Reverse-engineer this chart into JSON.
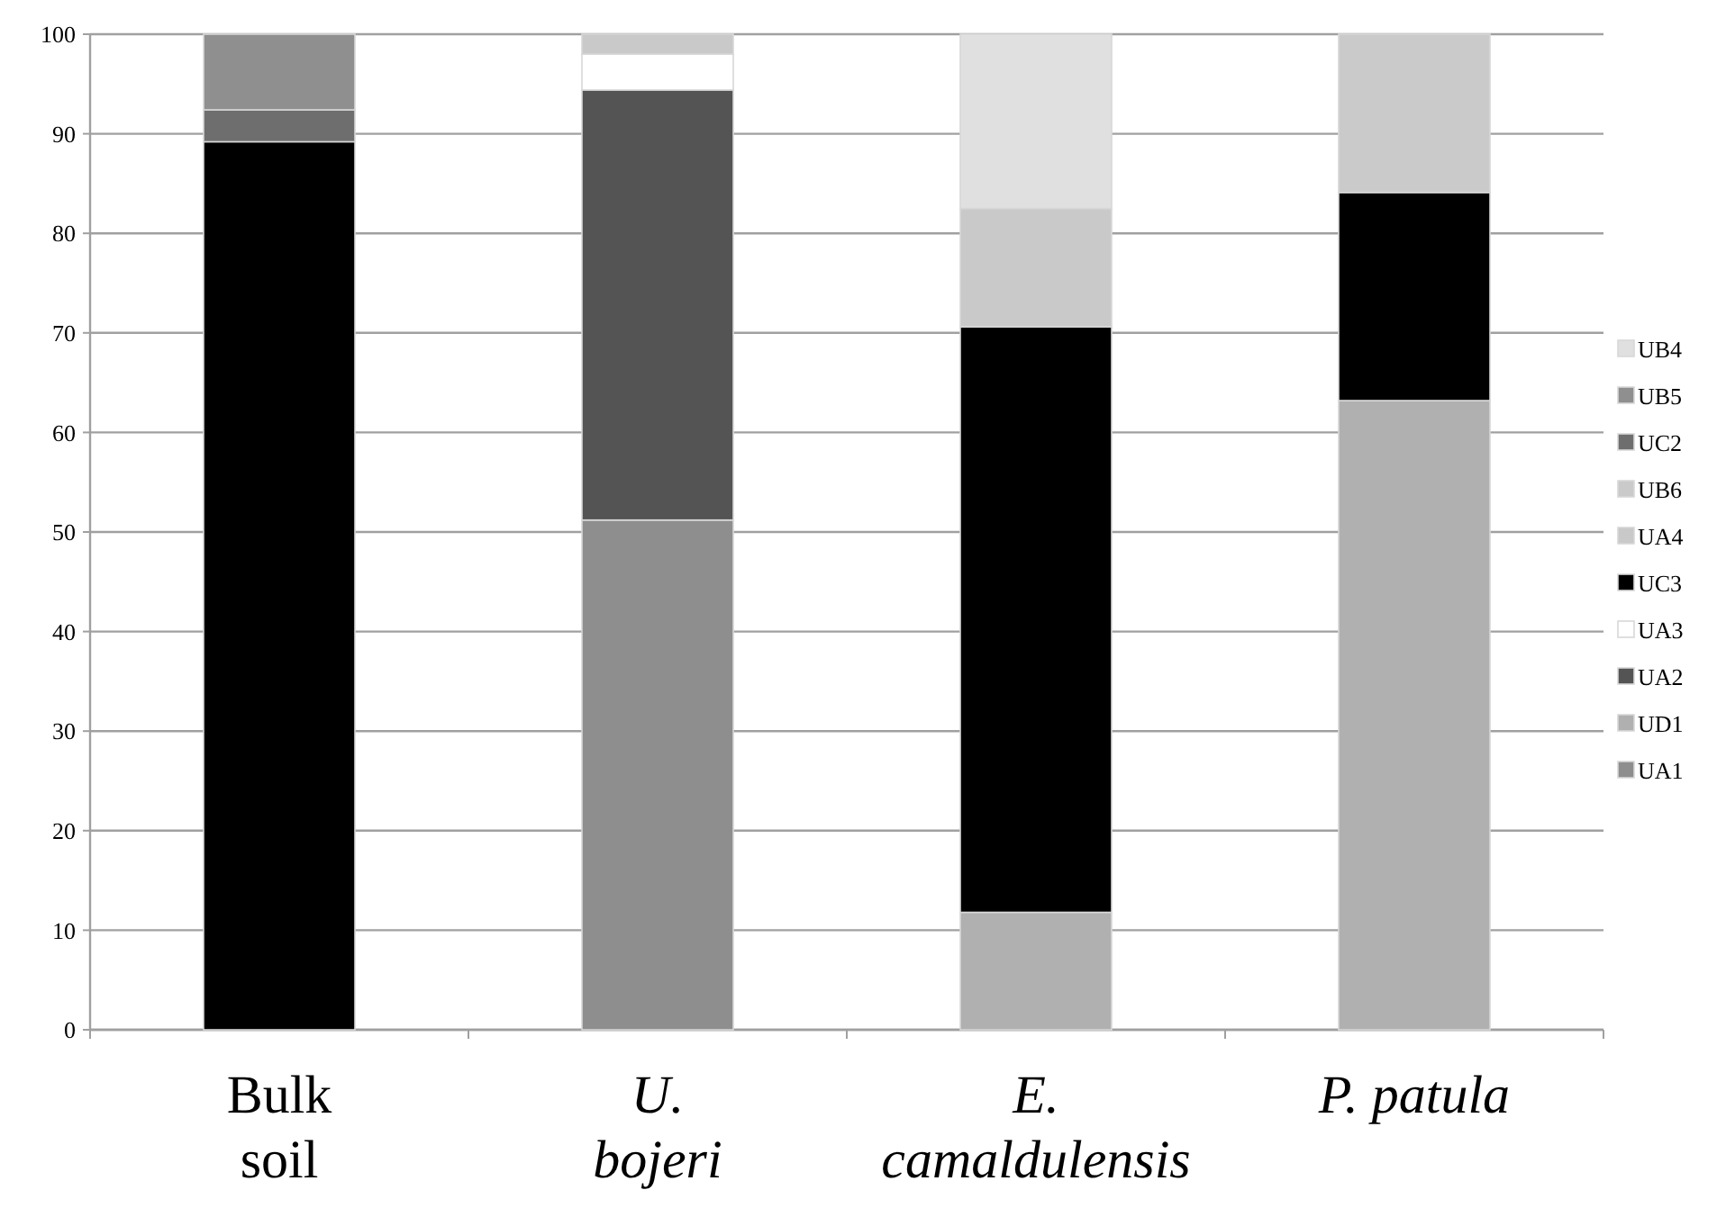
{
  "chart_data": {
    "type": "bar",
    "stacked": true,
    "categories": [
      "Bulk soil",
      "U. bojeri",
      "E. camaldulensis",
      "P. patula"
    ],
    "series": [
      {
        "name": "UA1",
        "color": "#8e8e8e",
        "values": [
          0,
          51.2,
          0,
          0
        ]
      },
      {
        "name": "UD1",
        "color": "#b0b0b0",
        "values": [
          0,
          0,
          11.8,
          63.2
        ]
      },
      {
        "name": "UA2",
        "color": "#545454",
        "values": [
          0,
          43.2,
          0,
          0
        ]
      },
      {
        "name": "UA3",
        "color": "#ffffff",
        "values": [
          0,
          3.6,
          0,
          0
        ]
      },
      {
        "name": "UC3",
        "color": "#000000",
        "values": [
          89.2,
          0,
          58.8,
          20.9
        ]
      },
      {
        "name": "UA4",
        "color": "#c9c9c9",
        "values": [
          0,
          2.0,
          11.9,
          0
        ]
      },
      {
        "name": "UB6",
        "color": "#cacaca",
        "values": [
          0,
          0,
          0,
          15.9
        ]
      },
      {
        "name": "UC2",
        "color": "#6e6e6e",
        "values": [
          3.2,
          0,
          0,
          0
        ]
      },
      {
        "name": "UB5",
        "color": "#8f8f8f",
        "values": [
          7.6,
          0,
          0,
          0
        ]
      },
      {
        "name": "UB4",
        "color": "#e0e0e0",
        "values": [
          0,
          0,
          17.5,
          0
        ]
      }
    ],
    "ylim": [
      0,
      100
    ],
    "yticks": [
      0,
      10,
      20,
      30,
      40,
      50,
      60,
      70,
      80,
      90,
      100
    ],
    "grid": "y",
    "legend": "right"
  }
}
